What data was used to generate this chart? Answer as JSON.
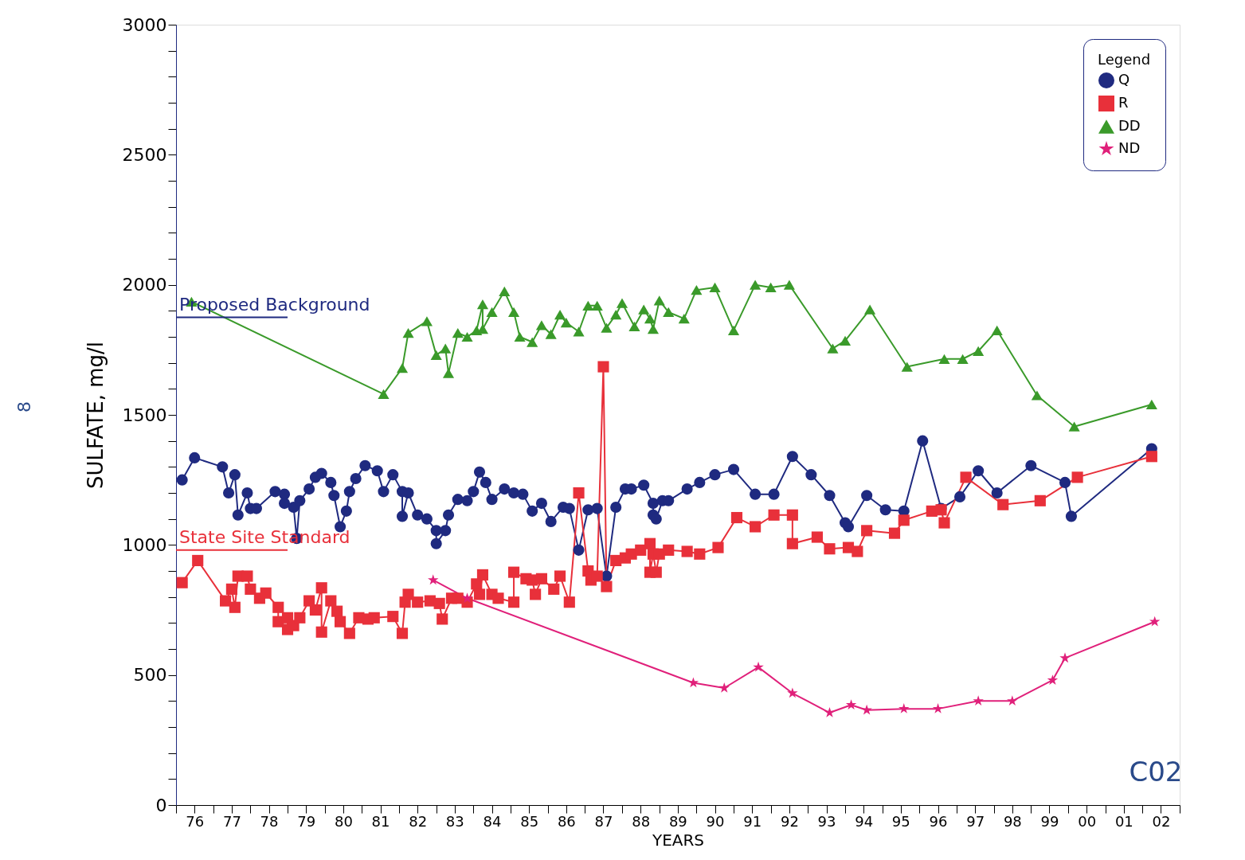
{
  "chart_data": {
    "type": "line",
    "xlabel": "YEARS",
    "ylabel": "SULFATE, mg/l",
    "annotations": [
      "C02",
      "8"
    ],
    "xlim": [
      "1976",
      "2003"
    ],
    "xticks": [
      {
        "value": "1976",
        "label": null
      },
      {
        "value": "1976-07",
        "label": "76"
      },
      {
        "value": "1977",
        "label": null
      },
      {
        "value": "1977-07",
        "label": "77"
      },
      {
        "value": "1978",
        "label": null
      },
      {
        "value": "1978-07",
        "label": "78"
      },
      {
        "value": "1979",
        "label": null
      },
      {
        "value": "1979-07",
        "label": "79"
      },
      {
        "value": "1980",
        "label": null
      },
      {
        "value": "1980-07",
        "label": "80"
      },
      {
        "value": "1981",
        "label": null
      },
      {
        "value": "1981-07",
        "label": "81"
      },
      {
        "value": "1982",
        "label": null
      },
      {
        "value": "1982-07",
        "label": "82"
      },
      {
        "value": "1983",
        "label": null
      },
      {
        "value": "1983-07",
        "label": "83"
      },
      {
        "value": "1984",
        "label": null
      },
      {
        "value": "1984-07",
        "label": "84"
      },
      {
        "value": "1985",
        "label": null
      },
      {
        "value": "1985-07",
        "label": "85"
      },
      {
        "value": "1986",
        "label": null
      },
      {
        "value": "1986-07",
        "label": "86"
      },
      {
        "value": "1987",
        "label": null
      },
      {
        "value": "1987-07",
        "label": "87"
      },
      {
        "value": "1988",
        "label": null
      },
      {
        "value": "1988-07",
        "label": "88"
      },
      {
        "value": "1989",
        "label": null
      },
      {
        "value": "1989-07",
        "label": "89"
      },
      {
        "value": "1990",
        "label": null
      },
      {
        "value": "1990-07",
        "label": "90"
      },
      {
        "value": "1991",
        "label": null
      },
      {
        "value": "1991-07",
        "label": "91"
      },
      {
        "value": "1992",
        "label": null
      },
      {
        "value": "1992-07",
        "label": "92"
      },
      {
        "value": "1993",
        "label": null
      },
      {
        "value": "1993-07",
        "label": "93"
      },
      {
        "value": "1994",
        "label": null
      },
      {
        "value": "1994-07",
        "label": "94"
      },
      {
        "value": "1995",
        "label": null
      },
      {
        "value": "1995-07",
        "label": "95"
      },
      {
        "value": "1996",
        "label": null
      },
      {
        "value": "1996-07",
        "label": "96"
      },
      {
        "value": "1997",
        "label": null
      },
      {
        "value": "1997-07",
        "label": "97"
      },
      {
        "value": "1998",
        "label": null
      },
      {
        "value": "1998-07",
        "label": "98"
      },
      {
        "value": "1999",
        "label": null
      },
      {
        "value": "1999-07",
        "label": "99"
      },
      {
        "value": "2000",
        "label": null
      },
      {
        "value": "2000-07",
        "label": "00"
      },
      {
        "value": "2001",
        "label": null
      },
      {
        "value": "2001-07",
        "label": "01"
      },
      {
        "value": "2002",
        "label": null
      },
      {
        "value": "2002-07",
        "label": "02"
      },
      {
        "value": "2003",
        "label": null
      }
    ],
    "ylim": [
      0,
      3000
    ],
    "yticks": [
      0,
      {
        "value": 100,
        "label": null
      },
      {
        "value": 200,
        "label": null
      },
      {
        "value": 300,
        "label": null
      },
      {
        "value": 400,
        "label": null
      },
      500,
      {
        "value": 600,
        "label": null
      },
      {
        "value": 700,
        "label": null
      },
      {
        "value": 800,
        "label": null
      },
      {
        "value": 900,
        "label": null
      },
      1000,
      {
        "value": 1100,
        "label": null
      },
      {
        "value": 1200,
        "label": null
      },
      {
        "value": 1300,
        "label": null
      },
      {
        "value": 1400,
        "label": null
      },
      1500,
      {
        "value": 1600,
        "label": null
      },
      {
        "value": 1700,
        "label": null
      },
      {
        "value": 1800,
        "label": null
      },
      {
        "value": 1900,
        "label": null
      },
      2000,
      {
        "value": 2100,
        "label": null
      },
      {
        "value": 2200,
        "label": null
      },
      {
        "value": 2300,
        "label": null
      },
      {
        "value": 2400,
        "label": null
      },
      2500,
      {
        "value": 2600,
        "label": null
      },
      {
        "value": 2700,
        "label": null
      },
      {
        "value": 2800,
        "label": null
      },
      {
        "value": 2900,
        "label": null
      },
      3000
    ],
    "grid": false,
    "legend": "top right",
    "legend_title": "Legend",
    "line_style": "solid",
    "ref_lines": [
      {
        "axis": "y",
        "value": 1875,
        "label": "Proposed Background",
        "color": "#1f2a80"
      },
      {
        "axis": "y",
        "value": 980,
        "label": "State Site Standard",
        "color": "#e8303a"
      }
    ],
    "series": [
      {
        "name": "Q",
        "color": "#1f2a80",
        "marker": "circle",
        "x": [
          "1976-03",
          "1976-07",
          "1977-04",
          "1977-06",
          "1977-08",
          "1977-09",
          "1977-12",
          "1978-01",
          "1978-03",
          "1978-09",
          "1978-12",
          "1978-12",
          "1979-03",
          "1979-04",
          "1979-05",
          "1979-08",
          "1979-10",
          "1979-12",
          "1980-03",
          "1980-04",
          "1980-06",
          "1980-08",
          "1980-09",
          "1980-11",
          "1981-02",
          "1981-06",
          "1981-08",
          "1981-11",
          "1982-02",
          "1982-02",
          "1982-04",
          "1982-07",
          "1982-10",
          "1983-01",
          "1983-01",
          "1983-04",
          "1983-05",
          "1983-08",
          "1983-11",
          "1984-01",
          "1984-03",
          "1984-05",
          "1984-07",
          "1984-11",
          "1985-02",
          "1985-05",
          "1985-08",
          "1985-11",
          "1986-02",
          "1986-06",
          "1986-08",
          "1986-11",
          "1987-02",
          "1987-05",
          "1987-08",
          "1987-11",
          "1988-02",
          "1988-04",
          "1988-08",
          "1988-11",
          "1988-11",
          "1988-12",
          "1989-02",
          "1989-04",
          "1989-10",
          "1990-02",
          "1990-07",
          "1991-01",
          "1991-08",
          "1992-02",
          "1992-08",
          "1993-02",
          "1993-08",
          "1994-01",
          "1994-02",
          "1994-08",
          "1995-02",
          "1995-08",
          "1996-02",
          "1996-08",
          "1997-02",
          "1997-08",
          "1998-02",
          "1999-01",
          "1999-12",
          "2000-02",
          "2002-04"
        ],
        "values": [
          1250,
          1335,
          1300,
          1200,
          1270,
          1115,
          1200,
          1140,
          1140,
          1205,
          1195,
          1160,
          1145,
          1025,
          1170,
          1215,
          1260,
          1275,
          1240,
          1190,
          1070,
          1130,
          1205,
          1255,
          1305,
          1285,
          1205,
          1270,
          1205,
          1110,
          1200,
          1115,
          1100,
          1055,
          1005,
          1055,
          1115,
          1175,
          1170,
          1205,
          1280,
          1240,
          1175,
          1215,
          1200,
          1195,
          1130,
          1160,
          1090,
          1145,
          1140,
          980,
          1135,
          1140,
          880,
          1145,
          1215,
          1215,
          1230,
          1160,
          1115,
          1100,
          1170,
          1170,
          1215,
          1240,
          1270,
          1290,
          1195,
          1195,
          1340,
          1270,
          1190,
          1085,
          1070,
          1190,
          1135,
          1130,
          1400,
          1140,
          1185,
          1285,
          1200,
          1305,
          1240,
          1110,
          1370
        ]
      },
      {
        "name": "R",
        "color": "#e8303a",
        "marker": "square",
        "x": [
          "1976-03",
          "1976-08",
          "1977-05",
          "1977-07",
          "1977-08",
          "1977-09",
          "1977-12",
          "1978-01",
          "1978-04",
          "1978-06",
          "1978-10",
          "1978-10",
          "1979-01",
          "1979-01",
          "1979-03",
          "1979-05",
          "1979-08",
          "1979-10",
          "1979-12",
          "1979-12",
          "1980-03",
          "1980-05",
          "1980-06",
          "1980-09",
          "1980-12",
          "1981-03",
          "1981-05",
          "1981-11",
          "1982-02",
          "1982-03",
          "1982-04",
          "1982-07",
          "1982-11",
          "1983-02",
          "1983-03",
          "1983-06",
          "1983-08",
          "1983-11",
          "1984-02",
          "1984-03",
          "1984-04",
          "1984-07",
          "1984-09",
          "1985-02",
          "1985-02",
          "1985-06",
          "1985-08",
          "1985-09",
          "1985-11",
          "1986-03",
          "1986-05",
          "1986-08",
          "1986-11",
          "1987-02",
          "1987-03",
          "1987-05",
          "1987-07",
          "1987-08",
          "1987-11",
          "1988-02",
          "1988-04",
          "1988-07",
          "1988-10",
          "1988-10",
          "1988-11",
          "1988-12",
          "1989-01",
          "1989-04",
          "1989-10",
          "1990-02",
          "1990-08",
          "1991-02",
          "1991-08",
          "1992-02",
          "1992-08",
          "1992-08",
          "1993-04",
          "1993-08",
          "1994-02",
          "1994-05",
          "1994-08",
          "1995-05",
          "1995-08",
          "1996-05",
          "1996-08",
          "1996-09",
          "1997-04",
          "1998-04",
          "1999-04",
          "2000-04",
          "2002-04"
        ],
        "values": [
          855,
          940,
          785,
          830,
          760,
          880,
          880,
          830,
          795,
          815,
          760,
          705,
          675,
          720,
          690,
          720,
          785,
          750,
          835,
          665,
          785,
          745,
          705,
          660,
          720,
          715,
          720,
          725,
          660,
          780,
          810,
          780,
          785,
          775,
          715,
          795,
          795,
          780,
          850,
          810,
          885,
          810,
          795,
          780,
          895,
          870,
          865,
          810,
          870,
          830,
          880,
          780,
          1200,
          900,
          865,
          880,
          1685,
          840,
          940,
          950,
          965,
          980,
          1005,
          895,
          965,
          895,
          965,
          980,
          975,
          965,
          990,
          1105,
          1070,
          1115,
          1115,
          1005,
          1030,
          985,
          990,
          975,
          1055,
          1045,
          1095,
          1130,
          1135,
          1085,
          1260,
          1155,
          1170,
          1260,
          1340
        ]
      },
      {
        "name": "DD",
        "color": "#3a9a2a",
        "marker": "triangle",
        "x": [
          "1976-06",
          "1981-08",
          "1982-02",
          "1982-04",
          "1982-10",
          "1983-01",
          "1983-04",
          "1983-05",
          "1983-08",
          "1983-11",
          "1984-02",
          "1984-04",
          "1984-04",
          "1984-07",
          "1984-11",
          "1985-02",
          "1985-04",
          "1985-08",
          "1985-11",
          "1986-02",
          "1986-05",
          "1986-07",
          "1986-11",
          "1987-02",
          "1987-05",
          "1987-08",
          "1987-11",
          "1988-01",
          "1988-05",
          "1988-08",
          "1988-10",
          "1988-11",
          "1989-01",
          "1989-04",
          "1989-09",
          "1990-01",
          "1990-07",
          "1991-01",
          "1991-08",
          "1992-01",
          "1992-07",
          "1993-09",
          "1994-01",
          "1994-09",
          "1995-09",
          "1996-09",
          "1997-03",
          "1997-08",
          "1998-02",
          "1999-03",
          "2000-03",
          "2002-04"
        ],
        "values": [
          1935,
          1580,
          1680,
          1815,
          1860,
          1730,
          1755,
          1660,
          1815,
          1800,
          1825,
          1925,
          1830,
          1895,
          1975,
          1895,
          1800,
          1780,
          1845,
          1810,
          1885,
          1855,
          1820,
          1920,
          1920,
          1835,
          1885,
          1930,
          1840,
          1905,
          1870,
          1830,
          1940,
          1895,
          1870,
          1980,
          1990,
          1825,
          2000,
          1990,
          2000,
          1755,
          1785,
          1905,
          1685,
          1715,
          1715,
          1745,
          1825,
          1575,
          1455,
          1540
        ]
      },
      {
        "name": "ND",
        "color": "#e0207a",
        "marker": "star",
        "x": [
          "1982-12",
          "1983-11",
          "1989-12",
          "1990-10",
          "1991-09",
          "1992-08",
          "1993-08",
          "1994-03",
          "1994-08",
          "1995-08",
          "1996-07",
          "1997-08",
          "1998-07",
          "1999-08",
          "1999-12",
          "2002-05"
        ],
        "values": [
          865,
          795,
          470,
          450,
          530,
          430,
          355,
          385,
          365,
          370,
          370,
          400,
          400,
          480,
          565,
          705
        ]
      }
    ]
  }
}
